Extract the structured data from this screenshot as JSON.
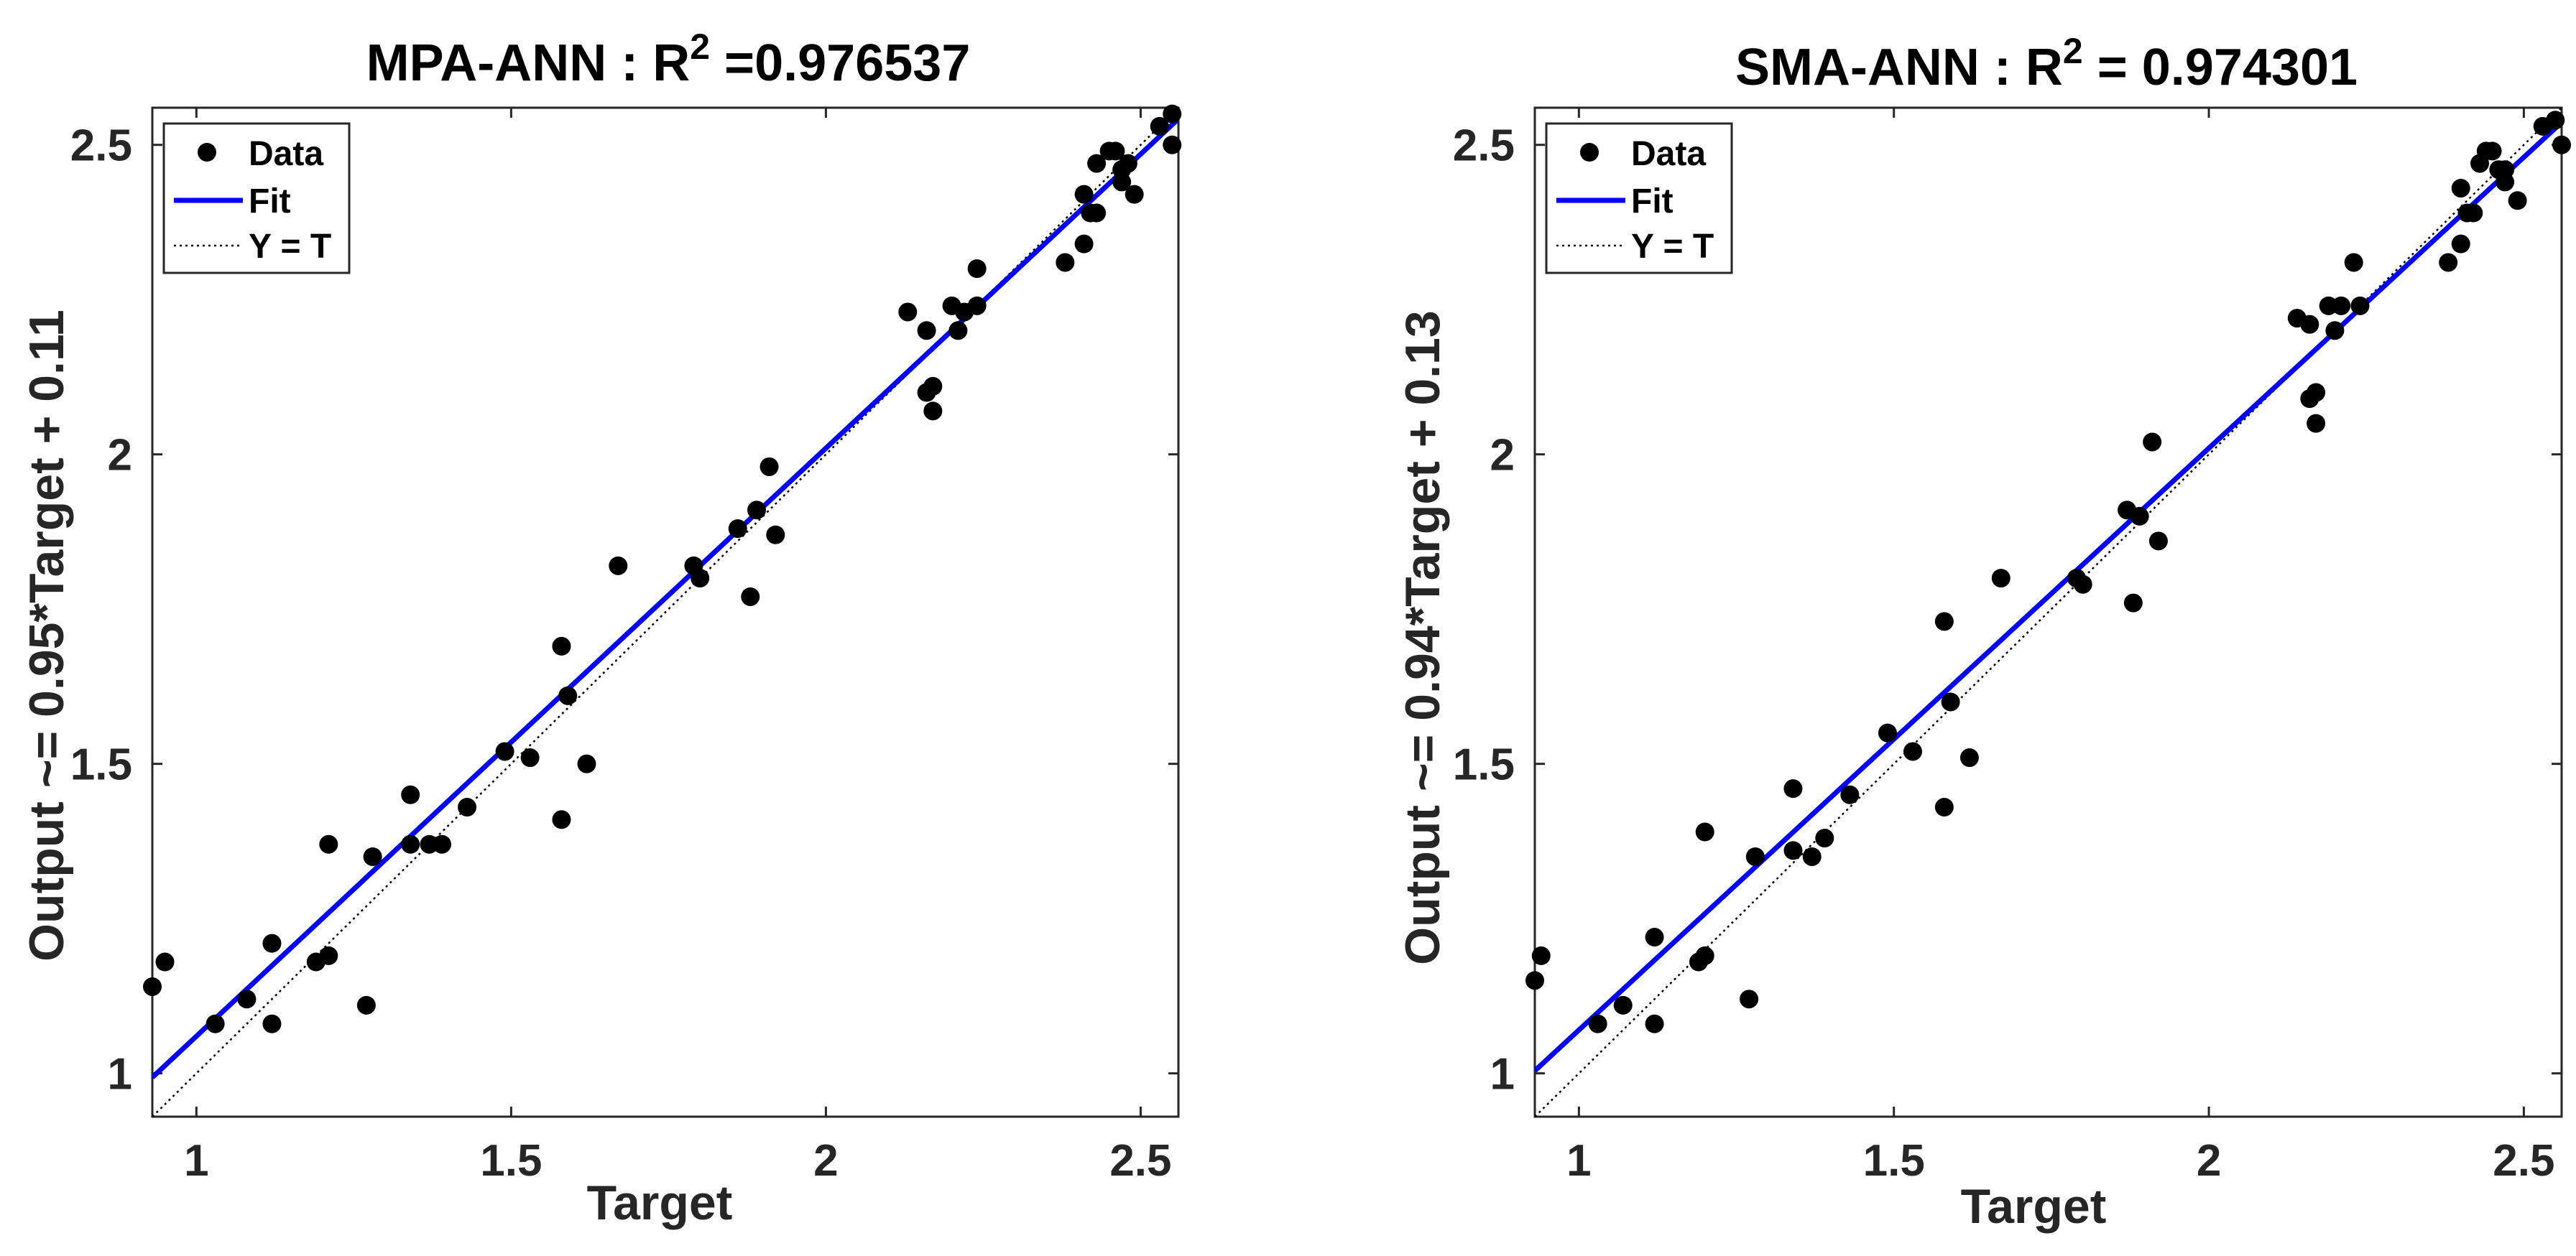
{
  "chart_data": [
    {
      "type": "scatter",
      "title_prefix": "MPA-ANN : R",
      "title_sup": "2",
      "title_suffix": " =0.976537",
      "xlabel": "Target",
      "ylabel": "Output ~= 0.95*Target + 0.11",
      "xlim": [
        0.93,
        2.56
      ],
      "ylim": [
        0.93,
        2.56
      ],
      "xticks": [
        "1",
        "1.5",
        "2",
        "2.5"
      ],
      "yticks": [
        "1",
        "1.5",
        "2",
        "2.5"
      ],
      "xtick_values": [
        1,
        1.5,
        2,
        2.5
      ],
      "ytick_values": [
        1,
        1.5,
        2,
        2.5
      ],
      "legend": {
        "data": "Data",
        "fit": "Fit",
        "yt": "Y = T"
      },
      "fit": {
        "slope": 0.95,
        "intercept": 0.11
      },
      "colors": {
        "data": "#000000",
        "fit": "#0000ff",
        "yt": "#000000"
      },
      "points": [
        [
          0.93,
          1.14
        ],
        [
          0.95,
          1.18
        ],
        [
          1.03,
          1.08
        ],
        [
          1.08,
          1.12
        ],
        [
          1.12,
          1.21
        ],
        [
          1.12,
          1.08
        ],
        [
          1.19,
          1.18
        ],
        [
          1.21,
          1.19
        ],
        [
          1.21,
          1.37
        ],
        [
          1.27,
          1.11
        ],
        [
          1.28,
          1.35
        ],
        [
          1.34,
          1.45
        ],
        [
          1.34,
          1.37
        ],
        [
          1.37,
          1.37
        ],
        [
          1.39,
          1.37
        ],
        [
          1.43,
          1.43
        ],
        [
          1.49,
          1.52
        ],
        [
          1.53,
          1.51
        ],
        [
          1.58,
          1.69
        ],
        [
          1.58,
          1.41
        ],
        [
          1.59,
          1.61
        ],
        [
          1.62,
          1.5
        ],
        [
          1.67,
          1.82
        ],
        [
          1.79,
          1.82
        ],
        [
          1.8,
          1.8
        ],
        [
          1.86,
          1.88
        ],
        [
          1.88,
          1.77
        ],
        [
          1.89,
          1.91
        ],
        [
          1.91,
          1.98
        ],
        [
          1.92,
          1.87
        ],
        [
          2.13,
          2.23
        ],
        [
          2.16,
          2.2
        ],
        [
          2.16,
          2.1
        ],
        [
          2.17,
          2.11
        ],
        [
          2.17,
          2.07
        ],
        [
          2.2,
          2.24
        ],
        [
          2.21,
          2.2
        ],
        [
          2.22,
          2.23
        ],
        [
          2.24,
          2.3
        ],
        [
          2.24,
          2.24
        ],
        [
          2.38,
          2.31
        ],
        [
          2.41,
          2.34
        ],
        [
          2.41,
          2.42
        ],
        [
          2.42,
          2.39
        ],
        [
          2.43,
          2.39
        ],
        [
          2.43,
          2.47
        ],
        [
          2.45,
          2.49
        ],
        [
          2.46,
          2.49
        ],
        [
          2.47,
          2.46
        ],
        [
          2.47,
          2.44
        ],
        [
          2.48,
          2.47
        ],
        [
          2.49,
          2.42
        ],
        [
          2.53,
          2.53
        ],
        [
          2.55,
          2.55
        ],
        [
          2.55,
          2.5
        ]
      ]
    },
    {
      "type": "scatter",
      "title_prefix": "SMA-ANN : R",
      "title_sup": "2",
      "title_suffix": " = 0.974301",
      "xlabel": "Target",
      "ylabel": "Output ~= 0.94*Target + 0.13",
      "xlim": [
        0.93,
        2.56
      ],
      "ylim": [
        0.93,
        2.56
      ],
      "xticks": [
        "1",
        "1.5",
        "2",
        "2.5"
      ],
      "yticks": [
        "1",
        "1.5",
        "2",
        "2.5"
      ],
      "xtick_values": [
        1,
        1.5,
        2,
        2.5
      ],
      "ytick_values": [
        1,
        1.5,
        2,
        2.5
      ],
      "legend": {
        "data": "Data",
        "fit": "Fit",
        "yt": "Y = T"
      },
      "fit": {
        "slope": 0.94,
        "intercept": 0.13
      },
      "colors": {
        "data": "#000000",
        "fit": "#0000ff",
        "yt": "#000000"
      },
      "points": [
        [
          0.93,
          1.15
        ],
        [
          0.94,
          1.19
        ],
        [
          1.03,
          1.08
        ],
        [
          1.07,
          1.11
        ],
        [
          1.12,
          1.22
        ],
        [
          1.12,
          1.08
        ],
        [
          1.19,
          1.18
        ],
        [
          1.2,
          1.19
        ],
        [
          1.2,
          1.39
        ],
        [
          1.27,
          1.12
        ],
        [
          1.28,
          1.35
        ],
        [
          1.34,
          1.46
        ],
        [
          1.34,
          1.36
        ],
        [
          1.37,
          1.35
        ],
        [
          1.39,
          1.38
        ],
        [
          1.43,
          1.45
        ],
        [
          1.49,
          1.55
        ],
        [
          1.53,
          1.52
        ],
        [
          1.58,
          1.73
        ],
        [
          1.58,
          1.43
        ],
        [
          1.59,
          1.6
        ],
        [
          1.62,
          1.51
        ],
        [
          1.67,
          1.8
        ],
        [
          1.79,
          1.8
        ],
        [
          1.8,
          1.79
        ],
        [
          1.87,
          1.91
        ],
        [
          1.88,
          1.76
        ],
        [
          1.89,
          1.9
        ],
        [
          1.91,
          2.02
        ],
        [
          1.92,
          1.86
        ],
        [
          2.14,
          2.22
        ],
        [
          2.16,
          2.21
        ],
        [
          2.16,
          2.09
        ],
        [
          2.17,
          2.1
        ],
        [
          2.17,
          2.05
        ],
        [
          2.19,
          2.24
        ],
        [
          2.2,
          2.2
        ],
        [
          2.21,
          2.24
        ],
        [
          2.23,
          2.31
        ],
        [
          2.24,
          2.24
        ],
        [
          2.38,
          2.31
        ],
        [
          2.4,
          2.34
        ],
        [
          2.4,
          2.43
        ],
        [
          2.41,
          2.39
        ],
        [
          2.42,
          2.39
        ],
        [
          2.43,
          2.47
        ],
        [
          2.44,
          2.49
        ],
        [
          2.45,
          2.49
        ],
        [
          2.46,
          2.46
        ],
        [
          2.47,
          2.44
        ],
        [
          2.47,
          2.46
        ],
        [
          2.49,
          2.41
        ],
        [
          2.53,
          2.53
        ],
        [
          2.55,
          2.54
        ],
        [
          2.56,
          2.5
        ]
      ]
    }
  ]
}
